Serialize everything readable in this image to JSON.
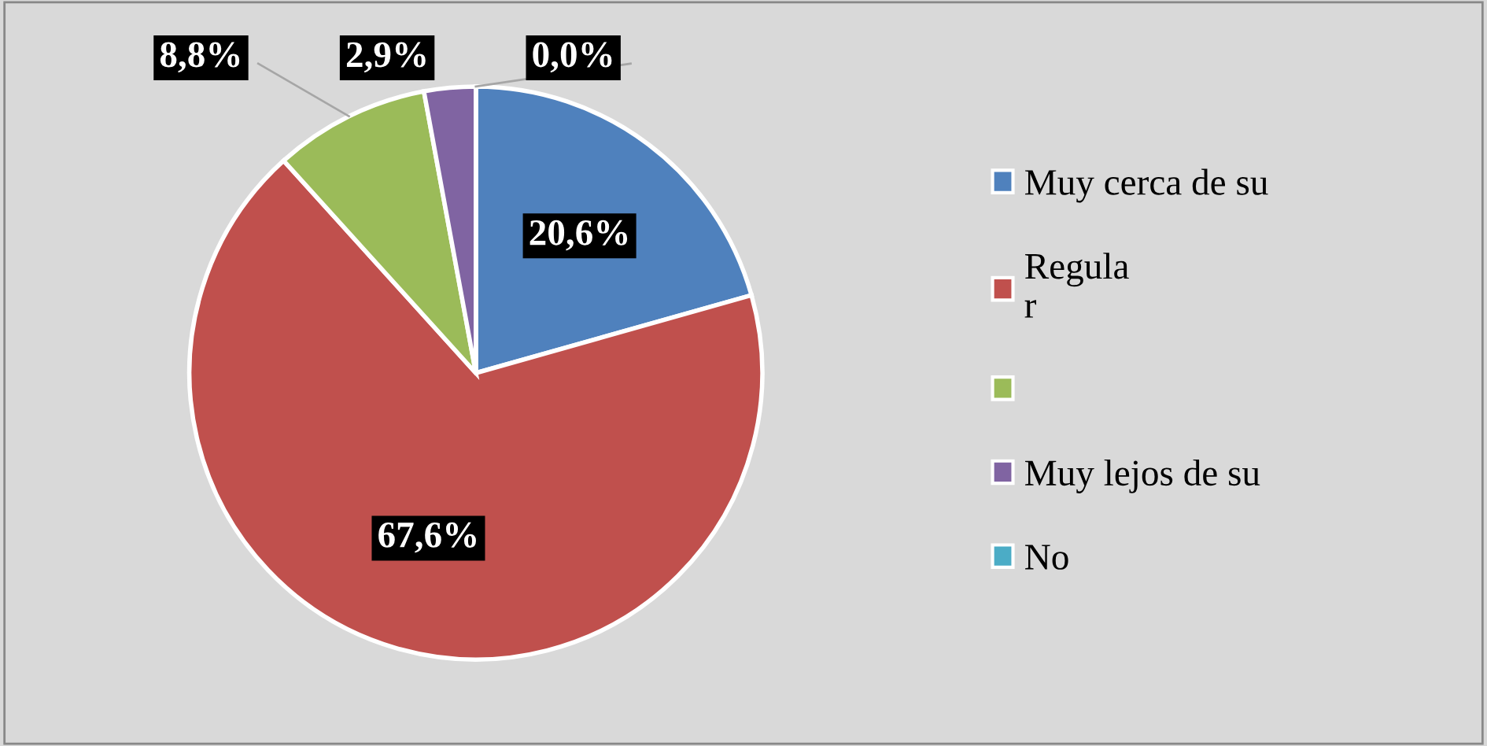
{
  "chart_data": {
    "type": "pie",
    "categories": [
      "Muy cerca de su",
      "Regula\nr",
      null,
      "Muy lejos de su",
      "No"
    ],
    "values": [
      20.6,
      67.6,
      8.8,
      2.9,
      0.0
    ],
    "colors": [
      "#4f81bd",
      "#c0504d",
      "#9bbb59",
      "#8064a2",
      "#4bacc6"
    ],
    "value_labels": [
      "20,6%",
      "67,6%",
      "8,8%",
      "2,9%",
      "0,0%"
    ],
    "legend": "right"
  }
}
